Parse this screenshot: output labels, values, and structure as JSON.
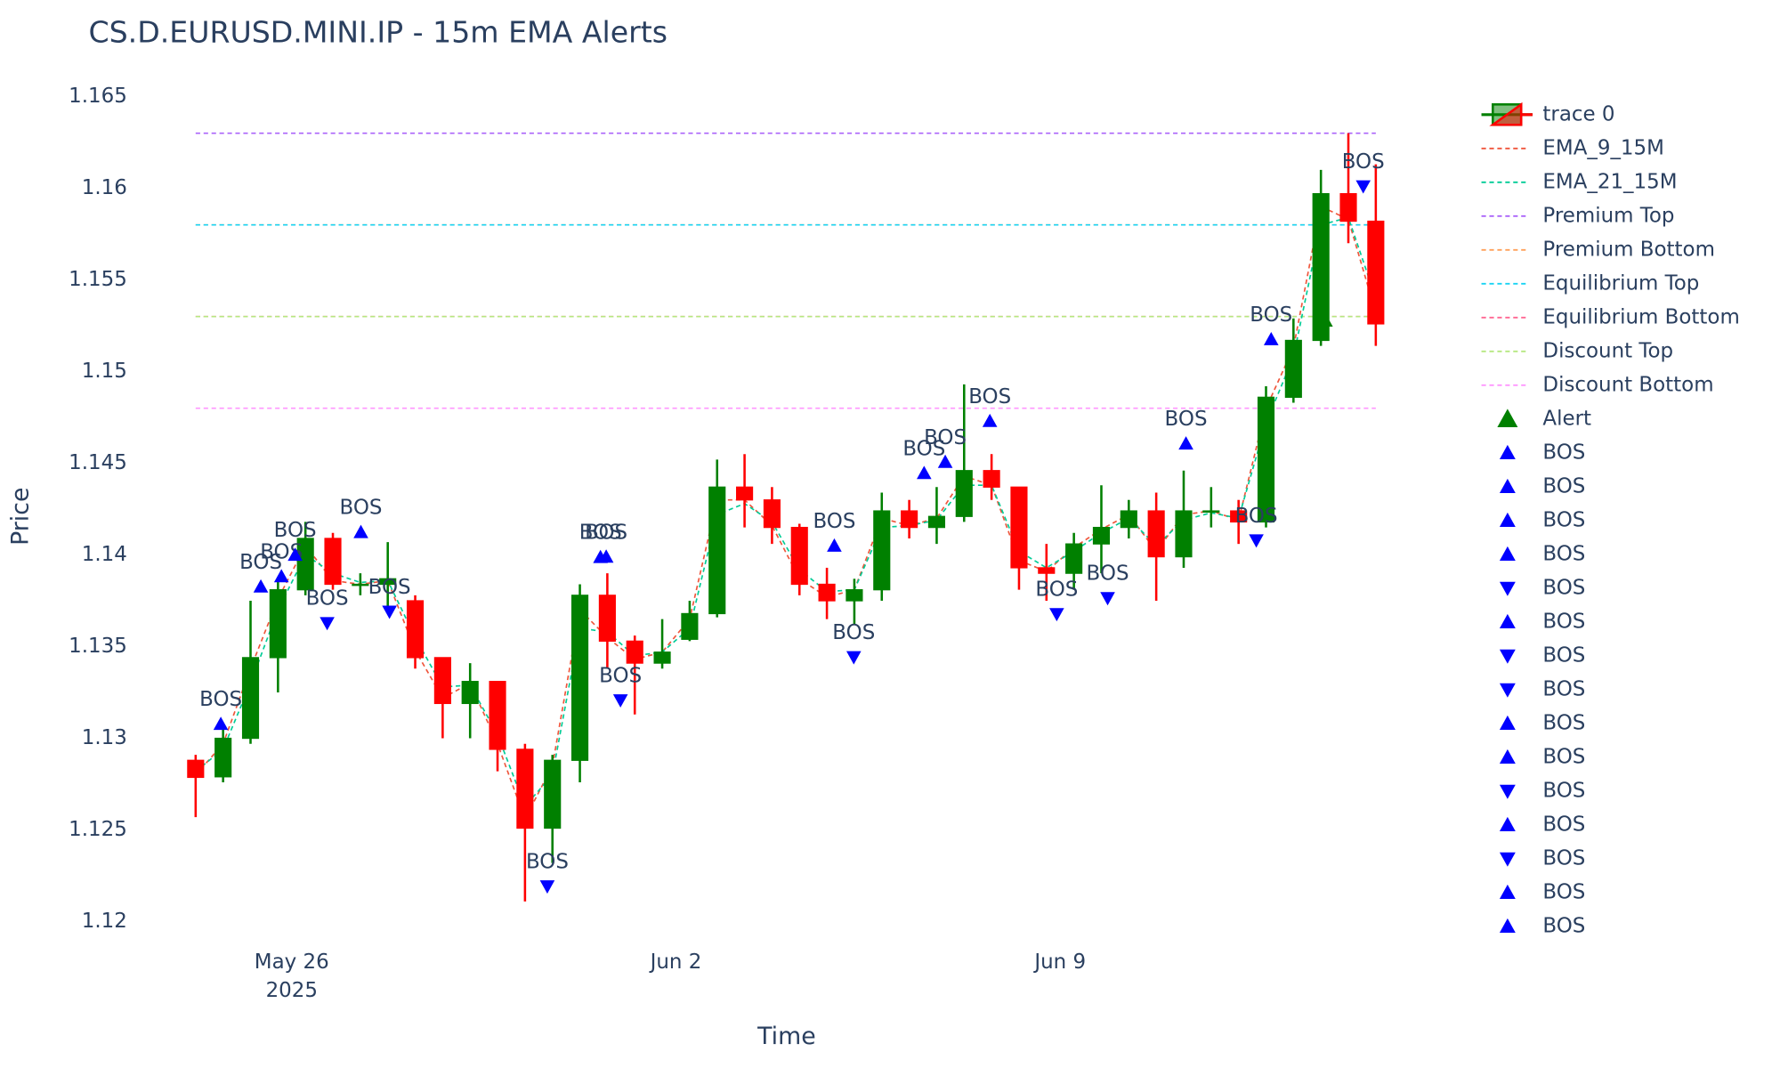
{
  "chart_data": {
    "type": "candlestick",
    "title": "CS.D.EURUSD.MINI.IP - 15m EMA Alerts",
    "x_label": "Time",
    "y_label": "Price",
    "grid": false,
    "xlim": [
      "2025-05-23T06:30",
      "2025-06-15T20:20"
    ],
    "ylim": [
      1.11889,
      1.16655
    ],
    "yticks": [
      1.12,
      1.125,
      1.13,
      1.135,
      1.14,
      1.145,
      1.15,
      1.155,
      1.16,
      1.165
    ],
    "xticks": [
      {
        "value": "2025-05-26",
        "label": "May 26",
        "sublabel": "2025"
      },
      {
        "value": "2025-06-02",
        "label": "Jun 2"
      },
      {
        "value": "2025-06-09",
        "label": "Jun 9"
      }
    ],
    "candles": {
      "name": "trace 0",
      "increasing_color": "#008000",
      "decreasing_color": "#ff0000",
      "x": [
        "2025-05-24T06:00",
        "2025-05-24T18:00",
        "2025-05-25T06:00",
        "2025-05-25T18:00",
        "2025-05-26T06:00",
        "2025-05-26T18:00",
        "2025-05-27T06:00",
        "2025-05-27T18:00",
        "2025-05-28T06:00",
        "2025-05-28T18:00",
        "2025-05-29T06:00",
        "2025-05-29T18:00",
        "2025-05-30T06:00",
        "2025-05-30T18:00",
        "2025-05-31T06:00",
        "2025-05-31T18:00",
        "2025-06-01T06:00",
        "2025-06-01T18:00",
        "2025-06-02T06:00",
        "2025-06-02T18:00",
        "2025-06-03T06:00",
        "2025-06-03T18:00",
        "2025-06-04T06:00",
        "2025-06-04T18:00",
        "2025-06-05T06:00",
        "2025-06-05T18:00",
        "2025-06-06T06:00",
        "2025-06-06T18:00",
        "2025-06-07T06:00",
        "2025-06-07T18:00",
        "2025-06-08T06:00",
        "2025-06-08T18:00",
        "2025-06-09T06:00",
        "2025-06-09T18:00",
        "2025-06-10T06:00",
        "2025-06-10T18:00",
        "2025-06-11T06:00",
        "2025-06-11T18:00",
        "2025-06-12T06:00",
        "2025-06-12T18:00",
        "2025-06-13T06:00",
        "2025-06-13T18:00",
        "2025-06-14T06:00",
        "2025-06-14T18:00"
      ],
      "open": [
        1.1288,
        1.1279,
        1.13,
        1.1344,
        1.1381,
        1.1409,
        1.1384,
        1.1384,
        1.1375,
        1.1344,
        1.1319,
        1.1331,
        1.1294,
        1.1251,
        1.1288,
        1.1378,
        1.1353,
        1.1341,
        1.1354,
        1.1368,
        1.1437,
        1.143,
        1.1415,
        1.1384,
        1.1375,
        1.1381,
        1.1424,
        1.1415,
        1.1421,
        1.1446,
        1.1437,
        1.1393,
        1.139,
        1.1406,
        1.1415,
        1.1424,
        1.1399,
        1.1424,
        1.1424,
        1.1418,
        1.1486,
        1.1517,
        1.1597,
        1.1582
      ],
      "high": [
        1.1291,
        1.1307,
        1.1375,
        1.1387,
        1.1418,
        1.1412,
        1.139,
        1.1407,
        1.1378,
        1.1344,
        1.1341,
        1.1331,
        1.1297,
        1.1291,
        1.1384,
        1.139,
        1.1356,
        1.1365,
        1.1375,
        1.1452,
        1.1455,
        1.1437,
        1.1417,
        1.1393,
        1.1387,
        1.1434,
        1.143,
        1.1437,
        1.1493,
        1.1455,
        1.1437,
        1.1406,
        1.1412,
        1.1438,
        1.143,
        1.1434,
        1.1446,
        1.1437,
        1.143,
        1.1492,
        1.1529,
        1.161,
        1.163,
        1.1613
      ],
      "low": [
        1.1257,
        1.1276,
        1.1297,
        1.1325,
        1.1378,
        1.1381,
        1.1378,
        1.1372,
        1.1338,
        1.13,
        1.13,
        1.1282,
        1.1211,
        1.1232,
        1.1276,
        1.1338,
        1.1313,
        1.1338,
        1.1353,
        1.1366,
        1.1415,
        1.1406,
        1.1378,
        1.1365,
        1.1362,
        1.1375,
        1.1409,
        1.1406,
        1.1418,
        1.143,
        1.1381,
        1.1375,
        1.1381,
        1.139,
        1.1409,
        1.1375,
        1.1393,
        1.1415,
        1.1406,
        1.1415,
        1.1483,
        1.1514,
        1.157,
        1.1514
      ],
      "close": [
        1.12787,
        1.13,
        1.1344,
        1.1381,
        1.1409,
        1.1384,
        1.1384,
        1.1387,
        1.1344,
        1.1319,
        1.1331,
        1.1294,
        1.1251,
        1.1288,
        1.1378,
        1.1353,
        1.1341,
        1.1347,
        1.1368,
        1.1437,
        1.143,
        1.1415,
        1.1384,
        1.1375,
        1.1381,
        1.1424,
        1.1415,
        1.1421,
        1.1446,
        1.1437,
        1.1393,
        1.139,
        1.1406,
        1.1415,
        1.1424,
        1.1399,
        1.1424,
        1.1424,
        1.1418,
        1.1486,
        1.1517,
        1.1597,
        1.1582,
        1.1526
      ]
    },
    "series": [
      {
        "name": "EMA_9_15M",
        "color": "#ef553b",
        "values": [
          1.128,
          1.1297,
          1.1338,
          1.1376,
          1.1405,
          1.1386,
          1.1384,
          1.1386,
          1.1348,
          1.1322,
          1.133,
          1.1297,
          1.1256,
          1.1285,
          1.137,
          1.1355,
          1.1343,
          1.1347,
          1.1365,
          1.143,
          1.143,
          1.1416,
          1.1387,
          1.1377,
          1.1381,
          1.142,
          1.1416,
          1.142,
          1.1443,
          1.1438,
          1.1397,
          1.1391,
          1.1404,
          1.1414,
          1.1422,
          1.1402,
          1.1422,
          1.1424,
          1.1419,
          1.148,
          1.1513,
          1.159,
          1.1583,
          1.1532
        ]
      },
      {
        "name": "EMA_21_15M",
        "color": "#00cc96",
        "values": [
          1.1282,
          1.1294,
          1.133,
          1.137,
          1.14,
          1.139,
          1.1385,
          1.1386,
          1.1355,
          1.1328,
          1.1329,
          1.1302,
          1.1263,
          1.128,
          1.136,
          1.1358,
          1.1345,
          1.1347,
          1.136,
          1.1422,
          1.1428,
          1.1418,
          1.1392,
          1.138,
          1.1381,
          1.1415,
          1.1416,
          1.1419,
          1.1438,
          1.1438,
          1.1402,
          1.1393,
          1.1402,
          1.1412,
          1.142,
          1.1405,
          1.1419,
          1.1423,
          1.142,
          1.1472,
          1.1508,
          1.158,
          1.1584,
          1.154
        ]
      }
    ],
    "level_x": [
      "2025-05-24T06:00",
      "2025-06-14T18:00"
    ],
    "levels": [
      {
        "name": "Premium Top",
        "color": "#ab63fa",
        "value": 1.163
      },
      {
        "name": "Premium Bottom",
        "color": "#ffa15a",
        "value": 1.158
      },
      {
        "name": "Equilibrium Top",
        "color": "#19d3f3",
        "value": 1.158
      },
      {
        "name": "Equilibrium Bottom",
        "color": "#ff6692",
        "value": 1.153
      },
      {
        "name": "Discount Top",
        "color": "#b6e880",
        "value": 1.153
      },
      {
        "name": "Discount Bottom",
        "color": "#ff97ff",
        "value": 1.148
      }
    ],
    "alert": {
      "name": "Alert",
      "color": "#008000",
      "x": [
        "2025-06-13T19:00"
      ],
      "values": [
        1.15287
      ]
    },
    "bos": [
      {
        "name": "BOS",
        "direction": "up",
        "color": "#0000ff",
        "x": [
          "2025-05-24T17:00"
        ],
        "values": [
          1.13078
        ],
        "text": [
          "BOS"
        ]
      },
      {
        "name": "BOS",
        "direction": "up",
        "color": "#0000ff",
        "x": [
          "2025-05-25T10:30"
        ],
        "values": [
          1.13827
        ],
        "text": [
          "BOS"
        ]
      },
      {
        "name": "BOS",
        "direction": "up",
        "color": "#0000ff",
        "x": [
          "2025-05-25T19:30"
        ],
        "values": [
          1.13883
        ],
        "text": [
          "BOS"
        ]
      },
      {
        "name": "BOS",
        "direction": "up",
        "color": "#0000ff",
        "x": [
          "2025-05-26T01:30"
        ],
        "values": [
          1.14
        ],
        "text": [
          "BOS"
        ]
      },
      {
        "name": "BOS",
        "direction": "down",
        "color": "#0000ff",
        "x": [
          "2025-05-26T15:30"
        ],
        "values": [
          1.13629
        ],
        "text": [
          "BOS"
        ]
      },
      {
        "name": "BOS",
        "direction": "up",
        "color": "#0000ff",
        "x": [
          "2025-05-27T06:15"
        ],
        "values": [
          1.14124
        ],
        "text": [
          "BOS"
        ]
      },
      {
        "name": "BOS",
        "direction": "down",
        "color": "#0000ff",
        "x": [
          "2025-05-27T18:45"
        ],
        "values": [
          1.13691
        ],
        "text": [
          "BOS"
        ]
      },
      {
        "name": "BOS",
        "direction": "down",
        "color": "#0000ff",
        "x": [
          "2025-05-30T15:45",
          "2025-06-14T12:30"
        ],
        "values": [
          1.12193,
          1.16011
        ],
        "text": [
          "BOS",
          "BOS"
        ]
      },
      {
        "name": "BOS",
        "direction": "up",
        "color": "#0000ff",
        "x": [
          "2025-05-31T15:00"
        ],
        "values": [
          1.13988
        ],
        "text": [
          "BOS"
        ]
      },
      {
        "name": "BOS",
        "direction": "up",
        "color": "#0000ff",
        "x": [
          "2025-05-31T17:30"
        ],
        "values": [
          1.1399
        ],
        "text": [
          "BOS"
        ]
      },
      {
        "name": "BOS",
        "direction": "down",
        "color": "#0000ff",
        "x": [
          "2025-05-31T23:45",
          "2025-06-12T13:45"
        ],
        "values": [
          1.13208,
          1.1408
        ],
        "text": [
          "BOS",
          "BOS"
        ]
      },
      {
        "name": "BOS",
        "direction": "up",
        "color": "#0000ff",
        "x": [
          "2025-06-04T21:15",
          "2025-06-12T20:15"
        ],
        "values": [
          1.1405,
          1.15176
        ],
        "text": [
          "BOS",
          "BOS"
        ]
      },
      {
        "name": "BOS",
        "direction": "down",
        "color": "#0000ff",
        "x": [
          "2025-06-05T05:45",
          "2025-06-08T22:30",
          "2025-06-09T20:45"
        ],
        "values": [
          1.13443,
          1.13678,
          1.13765
        ],
        "text": [
          "BOS",
          "BOS",
          "BOS"
        ]
      },
      {
        "name": "BOS",
        "direction": "up",
        "color": "#0000ff",
        "x": [
          "2025-06-06T12:30",
          "2025-06-11T07:00"
        ],
        "values": [
          1.14446,
          1.14607
        ],
        "text": [
          "BOS",
          "BOS"
        ]
      },
      {
        "name": "BOS",
        "direction": "up",
        "color": "#0000ff",
        "x": [
          "2025-06-06T21:45",
          "2025-06-07T17:15"
        ],
        "values": [
          1.14507,
          1.1473
        ],
        "text": [
          "BOS",
          "BOS"
        ]
      }
    ]
  }
}
